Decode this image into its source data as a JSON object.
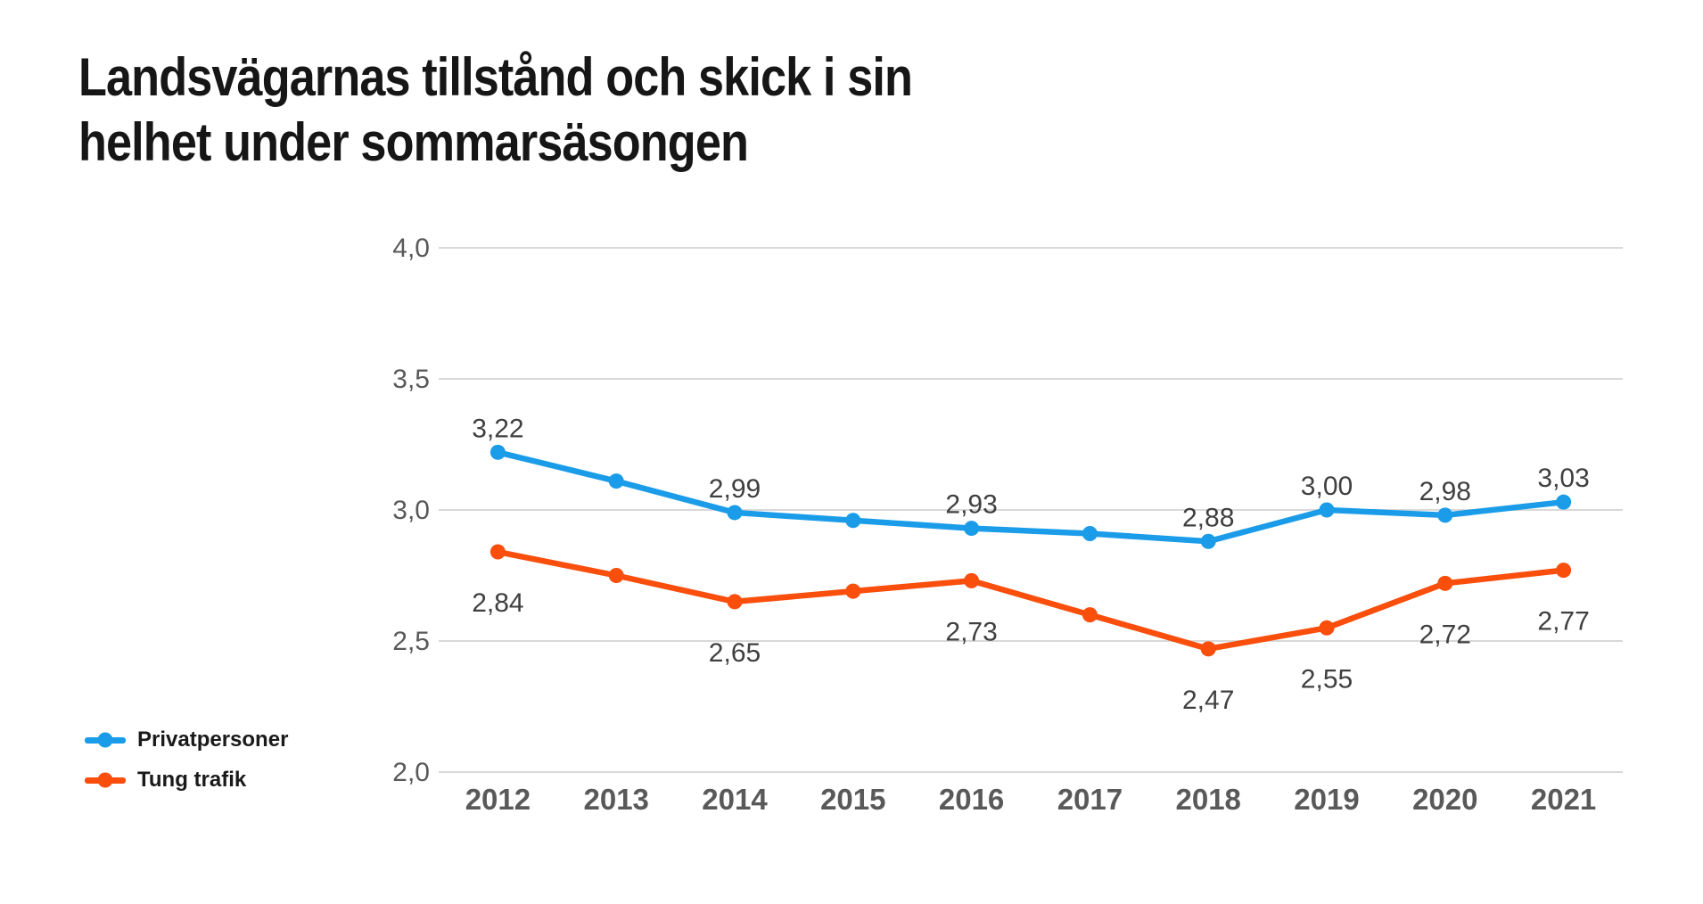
{
  "title": "Landsvägarnas tillstånd och skick i sin\nhelhet under sommarsäsongen",
  "colors": {
    "privatpersoner_blue": "#1b9ce9",
    "tung_trafik_orange": "#f94e0c",
    "gridline": "#d9d9d9",
    "axis_label": "#595959",
    "data_label": "#3f3f3f",
    "title_text": "#161616"
  },
  "chart_data": {
    "type": "line",
    "title": "Landsvägarnas tillstånd och skick i sin helhet under sommarsäsongen",
    "categories": [
      "2012",
      "2013",
      "2014",
      "2015",
      "2016",
      "2017",
      "2018",
      "2019",
      "2020",
      "2021"
    ],
    "series": [
      {
        "name": "Privatpersoner",
        "color": "#1b9ce9",
        "values": [
          3.22,
          3.11,
          2.99,
          2.96,
          2.93,
          2.91,
          2.88,
          3.0,
          2.98,
          3.03
        ],
        "point_labels": [
          "3,22",
          null,
          "2,99",
          null,
          "2,93",
          null,
          "2,88",
          "3,00",
          "2,98",
          "3,03"
        ],
        "label_position": "above"
      },
      {
        "name": "Tung trafik",
        "color": "#f94e0c",
        "values": [
          2.84,
          2.75,
          2.65,
          2.69,
          2.73,
          2.6,
          2.47,
          2.55,
          2.72,
          2.77
        ],
        "point_labels": [
          "2,84",
          null,
          "2,65",
          null,
          "2,73",
          null,
          "2,47",
          "2,55",
          "2,72",
          "2,77"
        ],
        "label_position": "below"
      }
    ],
    "y_ticks": [
      "4,0",
      "3,5",
      "3,0",
      "2,5",
      "2,0"
    ],
    "y_tick_values": [
      4.0,
      3.5,
      3.0,
      2.5,
      2.0
    ],
    "ylim": [
      2.0,
      4.0
    ],
    "xlabel": "",
    "ylabel": "",
    "grid": "horizontal",
    "legend_position": "bottom-left"
  }
}
